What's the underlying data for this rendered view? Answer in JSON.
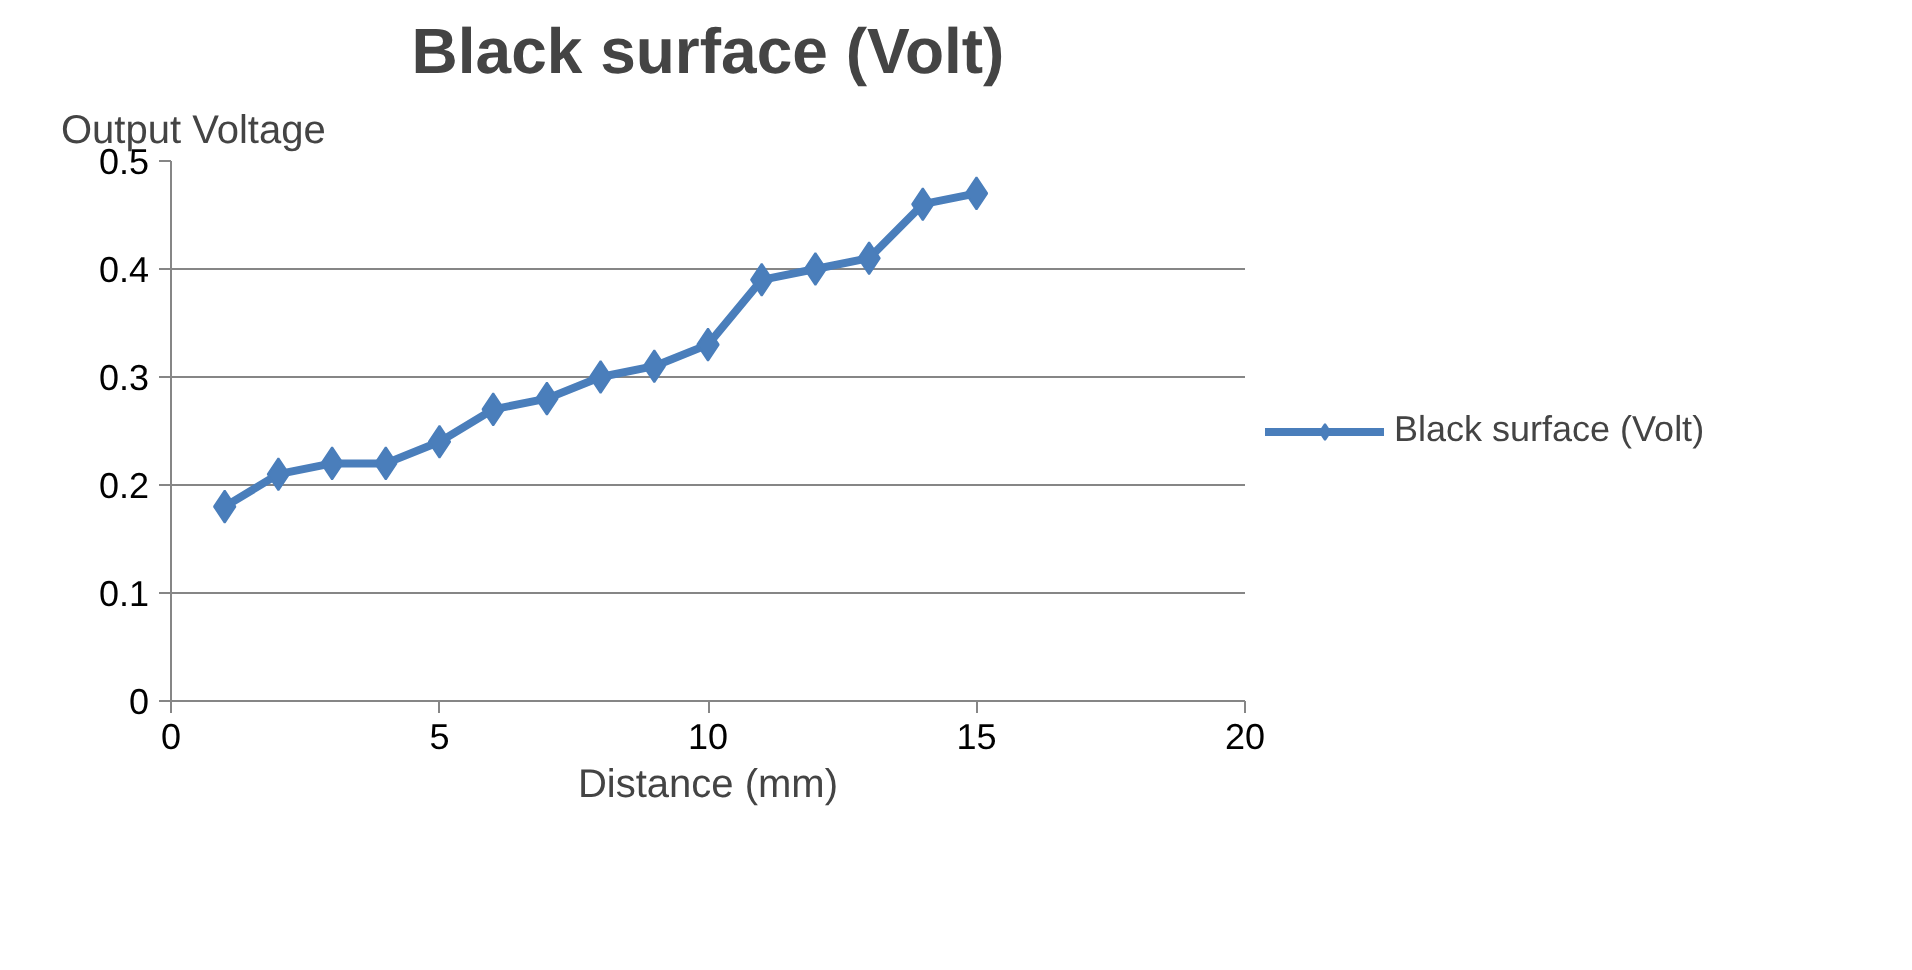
{
  "chart_data": {
    "type": "line",
    "title": "Black surface (Volt)",
    "xlabel": "Distance (mm)",
    "ylabel": "Output Voltage",
    "x": [
      1,
      2,
      3,
      4,
      5,
      6,
      7,
      8,
      9,
      10,
      11,
      12,
      13,
      14,
      15
    ],
    "series": [
      {
        "name": "Black surface (Volt)",
        "color": "#4a7ebb",
        "values": [
          0.18,
          0.21,
          0.22,
          0.22,
          0.24,
          0.27,
          0.28,
          0.3,
          0.31,
          0.33,
          0.39,
          0.4,
          0.41,
          0.46,
          0.47
        ]
      }
    ],
    "xlim": [
      0,
      20
    ],
    "xticks": [
      0,
      5,
      10,
      15,
      20
    ],
    "ylim": [
      0,
      0.5
    ],
    "yticks": [
      0,
      0.1,
      0.2,
      0.3,
      0.4,
      0.5
    ],
    "grid": "y",
    "legend": "right",
    "marker": "diamond",
    "line_style": "solid"
  }
}
